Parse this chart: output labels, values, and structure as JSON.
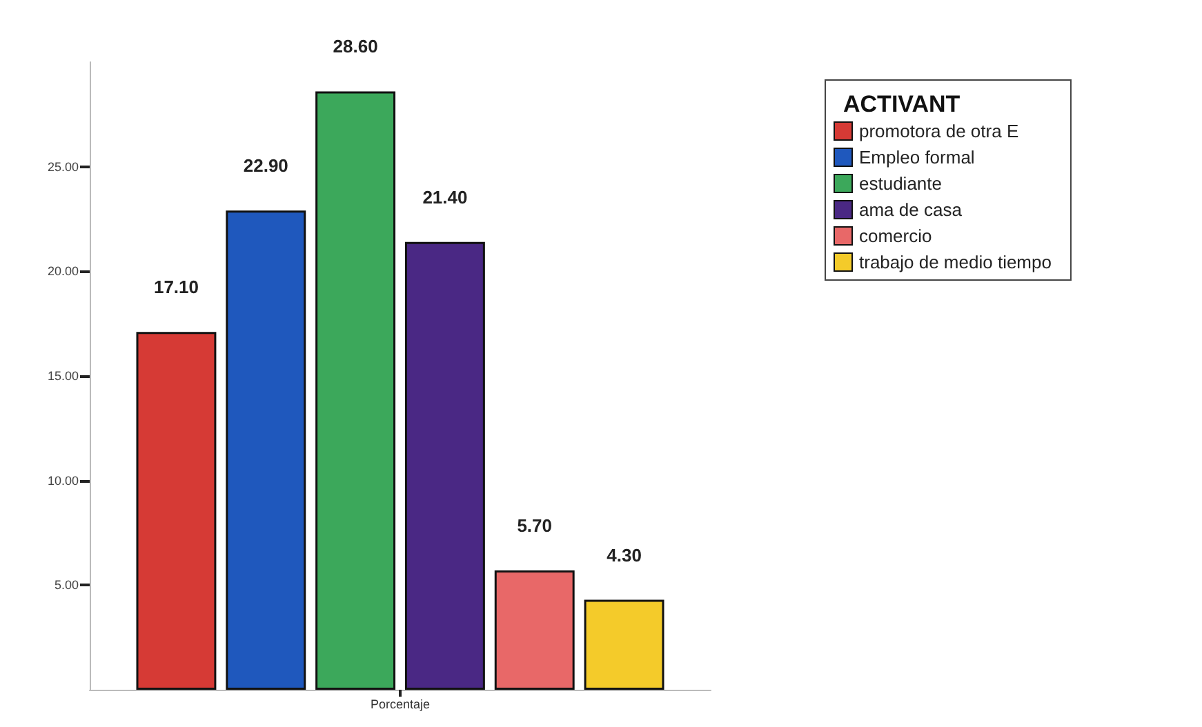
{
  "chart_data": {
    "type": "bar",
    "categories": [
      "Porcentaje"
    ],
    "legend_title": "ACTIVANT",
    "legend": "right",
    "series": [
      {
        "name": "promotora de otra E",
        "color": "#d63a35",
        "values": [
          17.1
        ],
        "value_labels": [
          "17.10"
        ]
      },
      {
        "name": "Empleo formal",
        "color": "#1f58bd",
        "values": [
          22.9
        ],
        "value_labels": [
          "22.90"
        ]
      },
      {
        "name": "estudiante",
        "color": "#3ca85b",
        "values": [
          28.6
        ],
        "value_labels": [
          "28.60"
        ]
      },
      {
        "name": "ama de casa",
        "color": "#4a2884",
        "values": [
          21.4
        ],
        "value_labels": [
          "21.40"
        ]
      },
      {
        "name": "comercio",
        "color": "#e86868",
        "values": [
          5.7
        ],
        "value_labels": [
          "5.70"
        ]
      },
      {
        "name": "trabajo de medio tiempo",
        "color": "#f4cb2a",
        "values": [
          4.3
        ],
        "value_labels": [
          "4.30"
        ]
      }
    ],
    "ylim": [
      0,
      30
    ],
    "yticks": [
      {
        "value": 5,
        "label": "5.00"
      },
      {
        "value": 10,
        "label": "10.00"
      },
      {
        "value": 15,
        "label": "15.00"
      },
      {
        "value": 20,
        "label": "20.00"
      },
      {
        "value": 25,
        "label": "25.00"
      }
    ],
    "grid": false
  }
}
